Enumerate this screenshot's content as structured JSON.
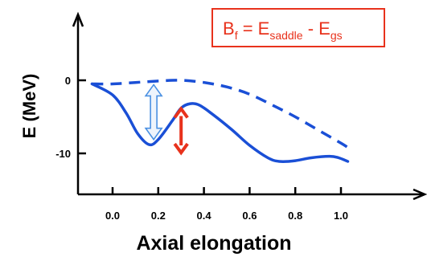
{
  "chart_data": {
    "type": "line",
    "xlabel": "Axial elongation",
    "ylabel": "E  (MeV)",
    "x_ticks": [
      "0.0",
      "0.2",
      "0.4",
      "0.6",
      "0.8",
      "1.0"
    ],
    "y_ticks": [
      "0",
      "-10"
    ],
    "xlim": [
      -0.12,
      1.15
    ],
    "ylim": [
      -16,
      3.5
    ],
    "grid": false,
    "legend": false,
    "series": [
      {
        "line_style": "solid",
        "color": "#1a4fd6",
        "points": [
          [
            -0.09,
            -0.5
          ],
          [
            0.0,
            -2.0
          ],
          [
            0.06,
            -4.5
          ],
          [
            0.11,
            -7.3
          ],
          [
            0.16,
            -8.8
          ],
          [
            0.2,
            -8.1
          ],
          [
            0.26,
            -5.6
          ],
          [
            0.3,
            -3.8
          ],
          [
            0.34,
            -3.2
          ],
          [
            0.38,
            -3.4
          ],
          [
            0.44,
            -4.7
          ],
          [
            0.52,
            -6.7
          ],
          [
            0.6,
            -8.9
          ],
          [
            0.68,
            -10.6
          ],
          [
            0.73,
            -11.1
          ],
          [
            0.8,
            -11.0
          ],
          [
            0.87,
            -10.6
          ],
          [
            0.95,
            -10.4
          ],
          [
            0.99,
            -10.6
          ],
          [
            1.03,
            -11.1
          ]
        ]
      },
      {
        "line_style": "dashed",
        "color": "#1a4fd6",
        "points": [
          [
            -0.09,
            -0.5
          ],
          [
            0.0,
            -0.5
          ],
          [
            0.1,
            -0.3
          ],
          [
            0.2,
            -0.1
          ],
          [
            0.3,
            0.0
          ],
          [
            0.4,
            -0.3
          ],
          [
            0.5,
            -0.9
          ],
          [
            0.6,
            -1.9
          ],
          [
            0.7,
            -3.4
          ],
          [
            0.8,
            -5.0
          ],
          [
            0.9,
            -6.8
          ],
          [
            1.0,
            -8.6
          ],
          [
            1.03,
            -9.2
          ]
        ]
      }
    ],
    "annotations": [
      {
        "kind": "double-arrow",
        "color": "#e8321c",
        "x": 0.3,
        "y_from": -3.9,
        "y_to": -9.9
      },
      {
        "kind": "double-arrow-outline",
        "color": "#4a90e2",
        "x": 0.18,
        "y_from": -0.6,
        "y_to": -8.1
      }
    ],
    "formula": {
      "base": "B",
      "sub1": "f",
      "mid": " = E",
      "sub2": "saddle",
      "sep": " - E",
      "sub3": "gs",
      "color": "#e8321c"
    }
  }
}
